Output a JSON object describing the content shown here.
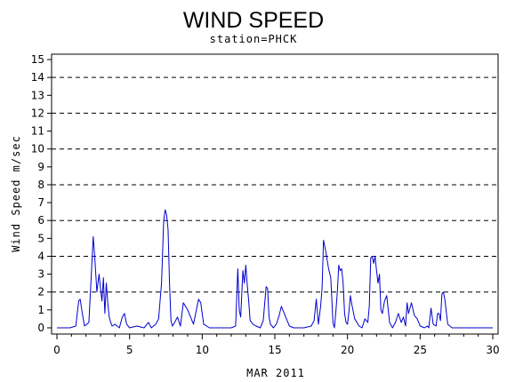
{
  "chart_data": {
    "type": "line",
    "title": "WIND SPEED",
    "subtitle": "station=PHCK",
    "xlabel": "MAR 2011",
    "ylabel": "Wind Speed m/sec",
    "xlim": [
      0,
      30
    ],
    "ylim": [
      0,
      15.3
    ],
    "x_ticks": [
      0,
      5,
      10,
      15,
      20,
      25,
      30
    ],
    "y_ticks": [
      0,
      1,
      2,
      3,
      4,
      5,
      6,
      7,
      8,
      9,
      10,
      11,
      12,
      13,
      14,
      15
    ],
    "dashed_gridlines": [
      2,
      4,
      6,
      8,
      10,
      12,
      14
    ],
    "line_color": "#0000cc",
    "series": [
      {
        "x": [
          0.0,
          0.9,
          1.3,
          1.5,
          1.6,
          1.75,
          1.9,
          2.2,
          2.4,
          2.5,
          2.6,
          2.75,
          2.9,
          3.0,
          3.1,
          3.2,
          3.3,
          3.4,
          3.5,
          3.6,
          3.7,
          3.8,
          4.0,
          4.3,
          4.5,
          4.65,
          4.8,
          5.0,
          5.5,
          6.0,
          6.3,
          6.5,
          6.8,
          7.0,
          7.2,
          7.35,
          7.45,
          7.55,
          7.65,
          7.75,
          7.85,
          7.95,
          8.1,
          8.3,
          8.5,
          8.7,
          9.0,
          9.2,
          9.4,
          9.6,
          9.75,
          9.9,
          10.1,
          10.5,
          11.0,
          11.5,
          12.0,
          12.3,
          12.45,
          12.55,
          12.65,
          12.8,
          12.9,
          13.0,
          13.1,
          13.2,
          13.3,
          13.5,
          13.7,
          14.0,
          14.2,
          14.4,
          14.5,
          14.6,
          14.7,
          14.9,
          15.1,
          15.3,
          15.45,
          15.6,
          15.8,
          16.0,
          16.3,
          17.0,
          17.5,
          17.7,
          17.85,
          18.0,
          18.15,
          18.25,
          18.35,
          18.5,
          18.7,
          18.85,
          19.0,
          19.1,
          19.2,
          19.3,
          19.4,
          19.5,
          19.6,
          19.7,
          19.8,
          19.9,
          20.0,
          20.1,
          20.2,
          20.3,
          20.5,
          20.8,
          21.0,
          21.2,
          21.4,
          21.5,
          21.6,
          21.7,
          21.8,
          21.9,
          22.0,
          22.1,
          22.2,
          22.3,
          22.4,
          22.55,
          22.7,
          22.9,
          23.1,
          23.3,
          23.5,
          23.7,
          23.85,
          24.0,
          24.1,
          24.2,
          24.4,
          24.6,
          24.8,
          25.0,
          25.3,
          25.5,
          25.6,
          25.75,
          25.9,
          26.1,
          26.2,
          26.3,
          26.4,
          26.5,
          26.6,
          26.7,
          26.9,
          27.2,
          28.0,
          29.0,
          30.0
        ],
        "y": [
          0.0,
          0.0,
          0.1,
          1.5,
          1.6,
          0.8,
          0.1,
          0.3,
          3.5,
          5.1,
          4.0,
          2.0,
          3.0,
          2.2,
          1.5,
          2.8,
          0.8,
          2.5,
          1.4,
          0.6,
          0.3,
          0.1,
          0.2,
          0.0,
          0.6,
          0.8,
          0.2,
          0.0,
          0.1,
          0.0,
          0.3,
          0.0,
          0.2,
          0.5,
          2.5,
          6.0,
          6.6,
          6.3,
          5.5,
          2.5,
          0.4,
          0.1,
          0.3,
          0.6,
          0.1,
          1.4,
          1.0,
          0.6,
          0.2,
          1.0,
          1.6,
          1.4,
          0.2,
          0.0,
          0.0,
          0.0,
          0.0,
          0.1,
          3.3,
          1.0,
          0.6,
          3.2,
          2.5,
          3.5,
          2.4,
          1.5,
          0.4,
          0.2,
          0.1,
          0.0,
          0.4,
          2.3,
          2.2,
          0.6,
          0.2,
          0.0,
          0.2,
          0.7,
          1.2,
          0.9,
          0.5,
          0.1,
          0.0,
          0.0,
          0.1,
          0.4,
          1.6,
          0.2,
          1.2,
          2.2,
          4.9,
          4.3,
          3.3,
          2.8,
          0.3,
          0.0,
          0.9,
          2.0,
          3.5,
          3.2,
          3.3,
          2.5,
          0.8,
          0.3,
          0.2,
          0.9,
          1.8,
          1.3,
          0.5,
          0.1,
          0.0,
          0.5,
          0.3,
          1.2,
          3.9,
          4.0,
          3.6,
          4.0,
          3.2,
          2.5,
          3.0,
          1.0,
          0.8,
          1.5,
          1.8,
          0.3,
          0.0,
          0.3,
          0.8,
          0.3,
          0.6,
          0.1,
          1.4,
          0.8,
          1.4,
          0.7,
          0.5,
          0.1,
          0.0,
          0.1,
          0.0,
          1.1,
          0.2,
          0.1,
          0.8,
          0.8,
          0.4,
          1.9,
          2.0,
          1.6,
          0.2,
          0.0,
          0.0,
          0.0,
          0.0
        ]
      }
    ]
  }
}
